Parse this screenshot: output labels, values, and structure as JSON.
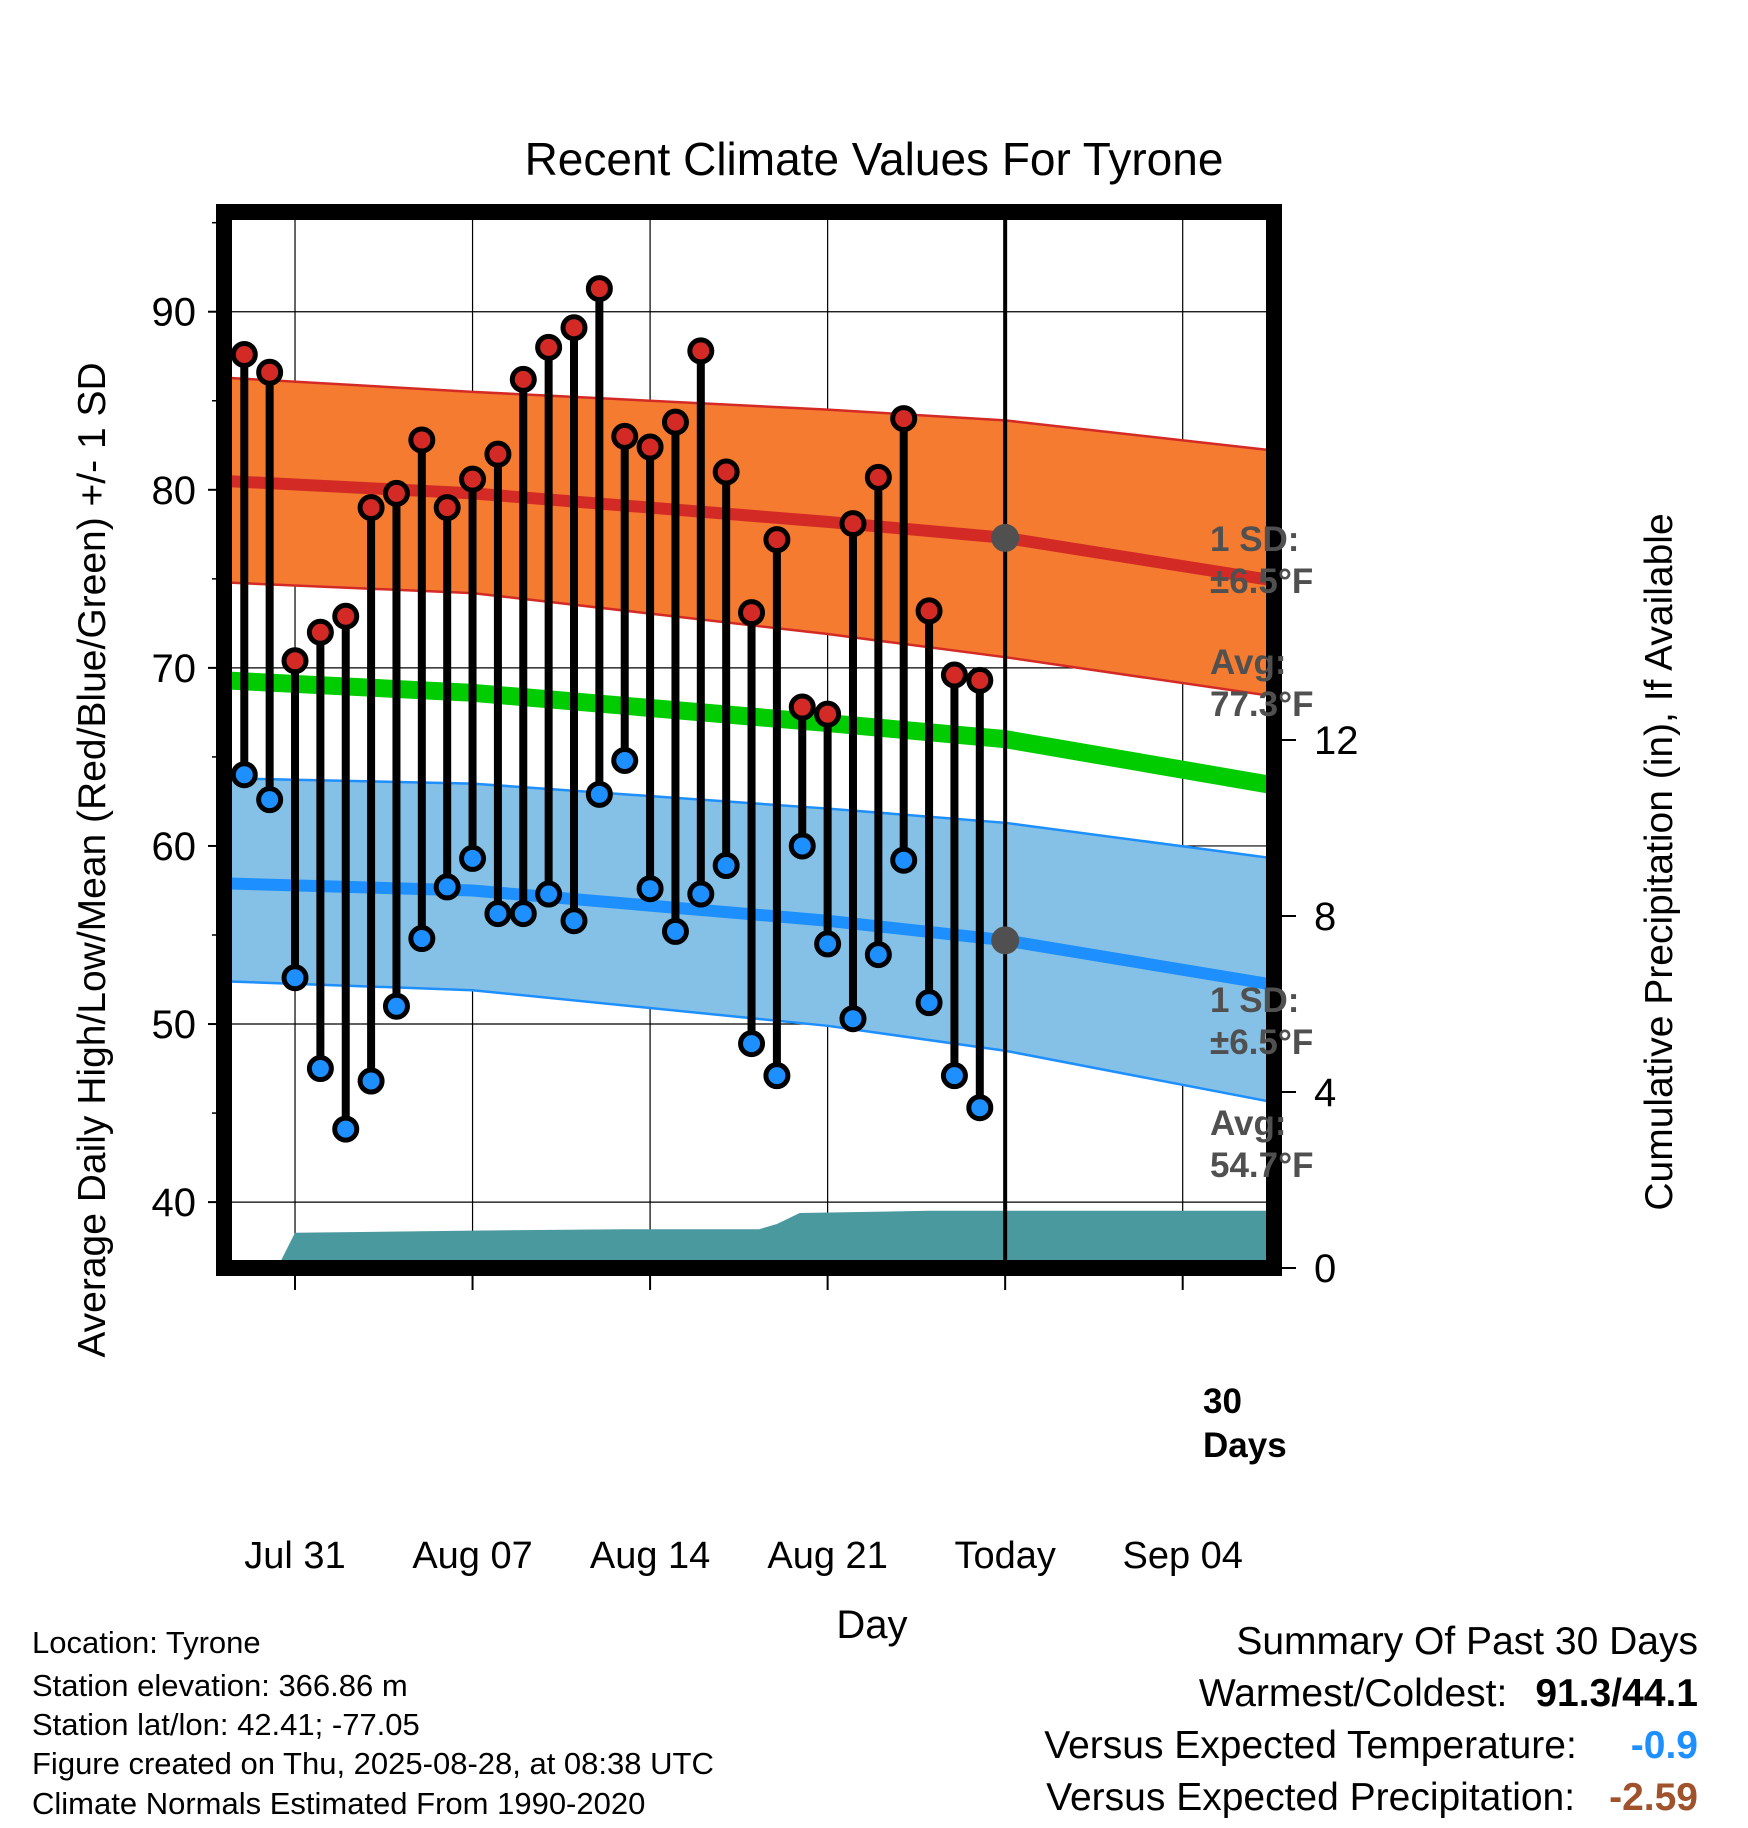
{
  "chart_data": {
    "type": "line",
    "title": "Recent Climate Values For Tyrone",
    "xlabel": "Day",
    "ylabel": "Average Daily High/Low/Mean (Red/Blue/Green) +/- 1 SD",
    "y2label": "Cumulative Precipitation (in), If Available",
    "ylim": [
      36.3,
      95.6
    ],
    "y2lim": [
      0,
      24
    ],
    "yticks": [
      "40",
      "50",
      "60",
      "70",
      "80",
      "90"
    ],
    "yticks_values": [
      40,
      50,
      60,
      70,
      80,
      90
    ],
    "y2ticks": [
      "0",
      "4",
      "8",
      "12"
    ],
    "y2ticks_values": [
      0,
      4,
      8,
      12
    ],
    "xlim": [
      -2.8,
      38.6
    ],
    "x_start_day": "Jul 31",
    "xticks": [
      {
        "day": 0,
        "label": "Jul 31"
      },
      {
        "day": 7,
        "label": "Aug 07"
      },
      {
        "day": 14,
        "label": "Aug 14"
      },
      {
        "day": 21,
        "label": "Aug 21"
      },
      {
        "day": 28,
        "label": "Today"
      },
      {
        "day": 35,
        "label": "Sep 04"
      }
    ],
    "grid": true,
    "observed": {
      "days": [
        -2,
        -1,
        0,
        1,
        2,
        3,
        4,
        5,
        6,
        7,
        8,
        9,
        10,
        11,
        12,
        13,
        14,
        15,
        16,
        17,
        18,
        19,
        20,
        21,
        22,
        23,
        24,
        25,
        26,
        27
      ],
      "highs": [
        87.6,
        86.6,
        70.4,
        72.0,
        72.9,
        79.0,
        79.8,
        82.8,
        79.0,
        80.6,
        82.0,
        86.2,
        88.0,
        89.1,
        91.3,
        83.0,
        82.4,
        83.8,
        87.8,
        81.0,
        73.1,
        77.2,
        67.8,
        67.4,
        78.1,
        80.7,
        84.0,
        73.2,
        69.6,
        69.3
      ],
      "lows": [
        64.0,
        62.6,
        52.6,
        47.5,
        44.1,
        46.8,
        51.0,
        54.8,
        57.7,
        59.3,
        56.2,
        56.2,
        57.3,
        55.8,
        62.9,
        64.8,
        57.6,
        55.2,
        57.3,
        58.9,
        48.9,
        47.1,
        60.0,
        54.5,
        50.3,
        53.9,
        59.2,
        51.2,
        47.1,
        45.3
      ]
    },
    "normals": {
      "days": [
        -2.8,
        7,
        21,
        28,
        38.6
      ],
      "avg_high": [
        80.5,
        79.8,
        78.2,
        77.3,
        74.9
      ],
      "avg_high_upper": [
        86.3,
        85.5,
        84.5,
        83.9,
        82.2
      ],
      "avg_high_lower": [
        74.8,
        74.2,
        71.9,
        70.6,
        68.4
      ],
      "avg_mean": [
        69.3,
        68.6,
        66.9,
        66.0,
        63.4
      ],
      "avg_low": [
        57.9,
        57.5,
        55.8,
        54.7,
        52.2
      ],
      "avg_low_upper": [
        63.8,
        63.5,
        62.1,
        61.3,
        59.3
      ],
      "avg_low_lower": [
        52.4,
        51.9,
        49.9,
        48.5,
        45.6
      ]
    },
    "precipitation": {
      "days": [
        -0.7,
        0,
        7,
        13,
        18.3,
        19,
        19.9,
        25,
        38.6
      ],
      "cumulative": [
        0,
        0.8,
        0.85,
        0.88,
        0.88,
        1.0,
        1.25,
        1.3,
        1.3
      ]
    },
    "today_day": 28,
    "annotations": {
      "high_sd_label": "1 SD:",
      "high_sd_value": "±6.5°F",
      "high_avg_label": "Avg:",
      "high_avg_value": "77.3°F",
      "low_sd_label": "1 SD:",
      "low_sd_value": "±6.5°F",
      "low_avg_label": "Avg:",
      "low_avg_value": "54.7°F",
      "days_count": "30",
      "days_word": "Days"
    },
    "colors": {
      "high_band": "#F47B30",
      "high_line": "#D42A26",
      "low_band": "#85C1E6",
      "low_line": "#1E8FFF",
      "mean_line": "#00CC00",
      "precip": "#4A999F",
      "high_dot": "#D42A26",
      "low_dot": "#1E8FFF",
      "annotation_text": "#505050"
    }
  },
  "info": {
    "location": "Location: Tyrone",
    "elevation": "Station elevation: 366.86 m",
    "latlon": "Station lat/lon: 42.41; -77.05",
    "created": "Figure created on Thu, 2025-08-28, at 08:38 UTC",
    "normals": "Climate Normals Estimated From 1990-2020"
  },
  "summary": {
    "title": "Summary Of Past 30 Days",
    "warmest_label": "Warmest/Coldest:",
    "warmest_value": "91.3/44.1",
    "temp_label": "Versus Expected Temperature:",
    "temp_value": "-0.9",
    "temp_color": "#1E8FFF",
    "precip_label": "Versus Expected Precipitation:",
    "precip_value": "-2.59",
    "precip_color": "#A0522D"
  }
}
